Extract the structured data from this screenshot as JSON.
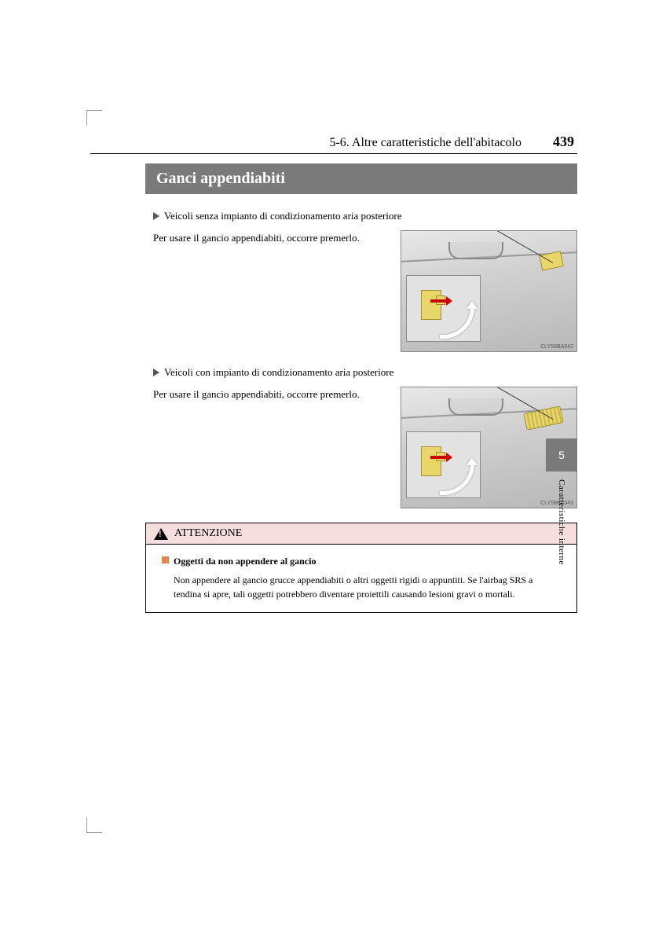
{
  "header": {
    "section_path": "5-6. Altre caratteristiche dell'abitacolo",
    "page_number": "439"
  },
  "title": "Ganci appendiabiti",
  "blocks": [
    {
      "heading": "Veicoli senza impianto di condizionamento aria posteriore",
      "body": "Per usare il gancio appendiabiti, occorre premerlo.",
      "fig_code": "CLY58BA042",
      "variant": "v1"
    },
    {
      "heading": "Veicoli con impianto di condizionamento aria posteriore",
      "body": "Per usare il gancio appendiabiti, occorre premerlo.",
      "fig_code": "CLY58BA043",
      "variant": "v2"
    }
  ],
  "caution": {
    "label": "ATTENZIONE",
    "sub_title": "Oggetti da non appendere al gancio",
    "text": "Non appendere al gancio grucce appendiabiti o altri oggetti rigidi o appuntiti. Se l'airbag SRS a tendina si apre, tali oggetti potrebbero diventare proiettili causando lesioni gravi o mortali."
  },
  "side": {
    "chapter": "5",
    "label": "Caratteristiche interne"
  }
}
